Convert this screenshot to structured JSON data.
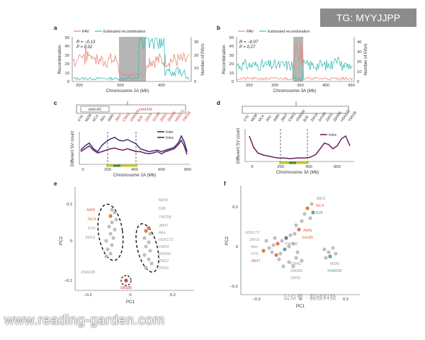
{
  "watermark": {
    "tag": "TG: MYYJJPP",
    "url": "www.reading-garden.com",
    "wechat": "公众号 · 毅硕科技"
  },
  "colors": {
    "pav": "#e9897a",
    "recomb": "#3bbcb4",
    "cent": "#b5b5b5",
    "inter": "#33336e",
    "intra": "#6d1d5c",
    "accent_red": "#c0392b",
    "grey_text": "#9a9a9a",
    "orange": "#e06a3b",
    "teal": "#5a9a8c"
  },
  "panel_a": {
    "letter": "a",
    "legend": [
      "PAV",
      "Estimated recombination"
    ],
    "stats": [
      "R = −0.13",
      "P = 0.02"
    ],
    "xlabel": "Chromosome 2A (Mb)",
    "ylabel_left": "Recombination",
    "ylabel_right": "Number of PAVs",
    "xticks": [
      "200",
      "300",
      "400"
    ],
    "yticks_left": [
      "0",
      "10",
      "20",
      "30",
      "40",
      "50"
    ],
    "yticks_right": [
      "0",
      "10",
      "20",
      "30"
    ]
  },
  "panel_b": {
    "letter": "b",
    "legend": [
      "PAV",
      "Estimated recombination"
    ],
    "stats": [
      "R = −0.07",
      "P = 0.27"
    ],
    "xlabel": "Chromosome 3A (Mb)",
    "ylabel_left": "Recombination",
    "ylabel_right": "Number of PAVs",
    "xticks": [
      "250",
      "300",
      "350",
      "400",
      "450"
    ],
    "yticks_left": [
      "0",
      "10",
      "20",
      "30",
      "40",
      "50"
    ],
    "yticks_right": [
      "0",
      "10",
      "20",
      "30",
      "40"
    ]
  },
  "panel_c": {
    "letter": "c",
    "hap1": "cent-H1",
    "hap2": "cent-H2",
    "accessions": [
      "XY6",
      "MZM",
      "NC4",
      "Abo",
      "AMN",
      "JM47",
      "CM42",
      "XN6028",
      "BJ8",
      "ZM16",
      "S4185",
      "ZM22",
      "ZM366",
      "HD6172",
      "YM158"
    ],
    "legend": [
      "Inter",
      "Intra"
    ],
    "ylabel": "Different SV count",
    "xlabel": "Chromosome 2A (Mb)",
    "xticks": [
      "0",
      "200",
      "400",
      "600",
      "800"
    ]
  },
  "panel_d": {
    "letter": "d",
    "accessions": [
      "XY6",
      "MZM",
      "NC4",
      "Abo",
      "AMN",
      "JM47",
      "CM42",
      "XN6028",
      "BJ8",
      "ZM16",
      "S4185",
      "ZM22",
      "ZM366",
      "HD6172",
      "YM158"
    ],
    "legend": [
      "Intra"
    ],
    "ylabel": "Different SV count",
    "xlabel": "Chromosome 3A (Mb)",
    "xticks": [
      "0",
      "200",
      "400",
      "600"
    ]
  },
  "panel_e": {
    "letter": "e",
    "xlabel": "PC1",
    "ylabel": "PC2",
    "xticks": [
      "−0.2",
      "0",
      "0.2"
    ],
    "yticks": [
      "0.2",
      "0",
      "−0.2"
    ],
    "left_labels": [
      "AMN",
      "NC4",
      "XY6",
      "ZM16"
    ],
    "right_labels": [
      "MZM",
      "BJ8",
      "YM158",
      "JM47",
      "Abo",
      "HD6172",
      "CM42",
      "ZM366",
      "ZM22",
      "ZM22"
    ],
    "bottom_labels": [
      "XN6028",
      "S4185"
    ]
  },
  "panel_f": {
    "letter": "f",
    "xlabel": "PC1",
    "ylabel": "PC2",
    "xticks": [
      "−0.2",
      "0",
      "0.2"
    ],
    "yticks": [
      "0.2",
      "0",
      "−0.2"
    ],
    "top_labels": [
      "JM22",
      "NC4",
      "BJ8"
    ],
    "left_labels": [
      "HD6172",
      "ZM16",
      "Abo",
      "XY6",
      "JM47"
    ],
    "center_labels": [
      "AMN",
      "S4185",
      "YM158"
    ],
    "bottom_labels": [
      "CM42",
      "ZM366",
      "ZM22"
    ],
    "right_labels": [
      "MZM",
      "XN6028"
    ]
  }
}
